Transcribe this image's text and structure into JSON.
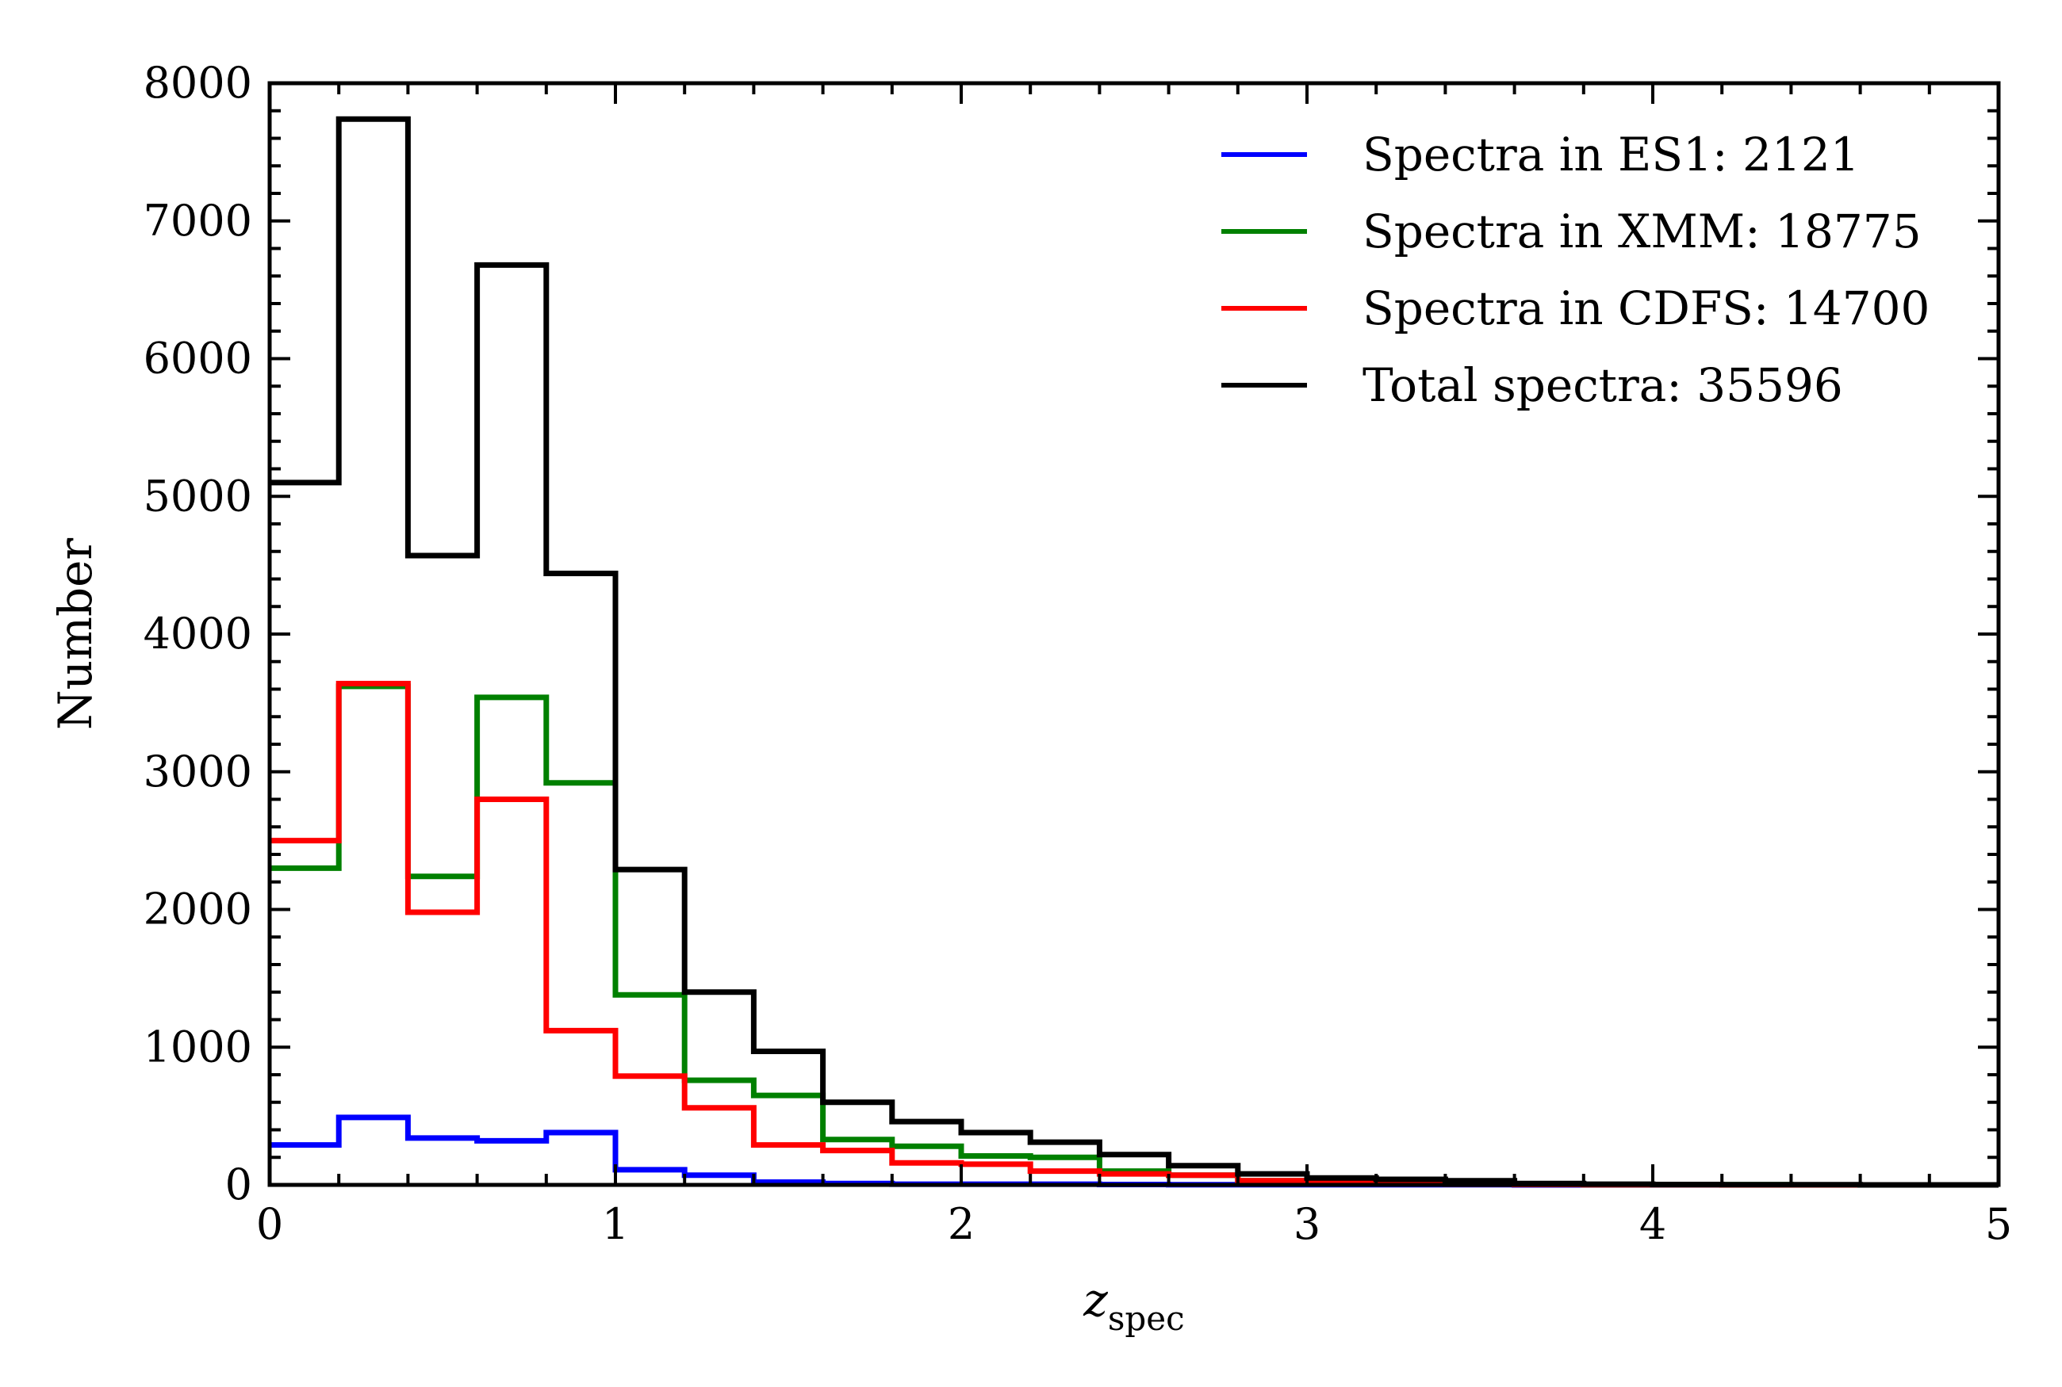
{
  "chart_data": {
    "type": "step",
    "title": "",
    "xlabel": "z",
    "xlabel_subscript": "spec",
    "ylabel": "Number",
    "xlim": [
      0,
      5
    ],
    "ylim": [
      0,
      8000
    ],
    "x_ticks": [
      0,
      1,
      2,
      3,
      4,
      5
    ],
    "x_tick_labels": [
      "0",
      "1",
      "2",
      "3",
      "4",
      "5"
    ],
    "y_ticks": [
      0,
      1000,
      2000,
      3000,
      4000,
      5000,
      6000,
      7000,
      8000
    ],
    "y_tick_labels": [
      "0",
      "1000",
      "2000",
      "3000",
      "4000",
      "5000",
      "6000",
      "7000",
      "8000"
    ],
    "grid": false,
    "legend_position": "top-right",
    "bin_edges": [
      0,
      0.2,
      0.4,
      0.6,
      0.8,
      1.0,
      1.2,
      1.4,
      1.6,
      1.8,
      2.0,
      2.2,
      2.4,
      2.6,
      2.8,
      3.0,
      3.2,
      3.4,
      3.6,
      3.8,
      4.0,
      4.2,
      4.4,
      4.6,
      4.8,
      5.0
    ],
    "series": [
      {
        "name": "Spectra in ES1: 2121",
        "color": "#0000ff",
        "values": [
          290,
          490,
          340,
          320,
          380,
          110,
          70,
          20,
          10,
          5,
          5,
          5,
          3,
          2,
          2,
          1,
          1,
          1,
          0,
          0,
          0,
          0,
          0,
          0,
          0
        ]
      },
      {
        "name": "Spectra in XMM: 18775",
        "color": "#008000",
        "values": [
          2300,
          3620,
          2240,
          3540,
          2920,
          1380,
          760,
          650,
          330,
          280,
          210,
          200,
          100,
          70,
          30,
          20,
          10,
          5,
          3,
          2,
          1,
          1,
          0,
          0,
          0
        ]
      },
      {
        "name": "Spectra in CDFS: 14700",
        "color": "#ff0000",
        "values": [
          2500,
          3640,
          1980,
          2800,
          1120,
          790,
          560,
          290,
          250,
          160,
          150,
          100,
          80,
          70,
          30,
          20,
          10,
          5,
          3,
          2,
          1,
          0,
          0,
          0,
          0
        ]
      },
      {
        "name": "Total spectra: 35596",
        "color": "#000000",
        "values": [
          5100,
          7740,
          4570,
          6680,
          4440,
          2290,
          1400,
          970,
          600,
          460,
          380,
          310,
          220,
          140,
          80,
          50,
          40,
          30,
          10,
          5,
          3,
          2,
          1,
          0,
          0
        ]
      }
    ]
  }
}
